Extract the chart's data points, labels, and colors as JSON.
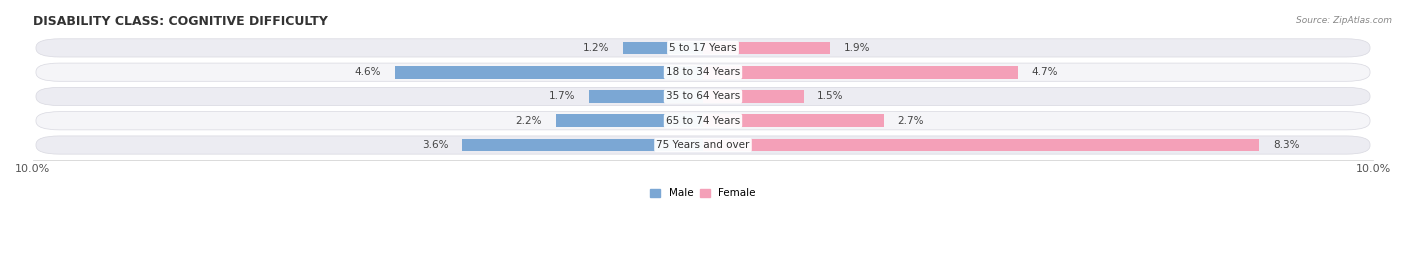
{
  "title": "DISABILITY CLASS: COGNITIVE DIFFICULTY",
  "source_text": "Source: ZipAtlas.com",
  "categories": [
    "75 Years and over",
    "65 to 74 Years",
    "35 to 64 Years",
    "18 to 34 Years",
    "5 to 17 Years"
  ],
  "male_values": [
    3.6,
    2.2,
    1.7,
    4.6,
    1.2
  ],
  "female_values": [
    8.3,
    2.7,
    1.5,
    4.7,
    1.9
  ],
  "male_color": "#7ba7d4",
  "female_color": "#f4a0b8",
  "male_label": "Male",
  "female_label": "Female",
  "xlim": 10.0,
  "title_fontsize": 9,
  "label_fontsize": 7.5,
  "tick_fontsize": 8,
  "bar_height": 0.52,
  "background_color": "#ffffff",
  "row_bg_color_odd": "#ececf2",
  "row_bg_color_even": "#f5f5f8",
  "row_edge_color": "#d8d8e0"
}
